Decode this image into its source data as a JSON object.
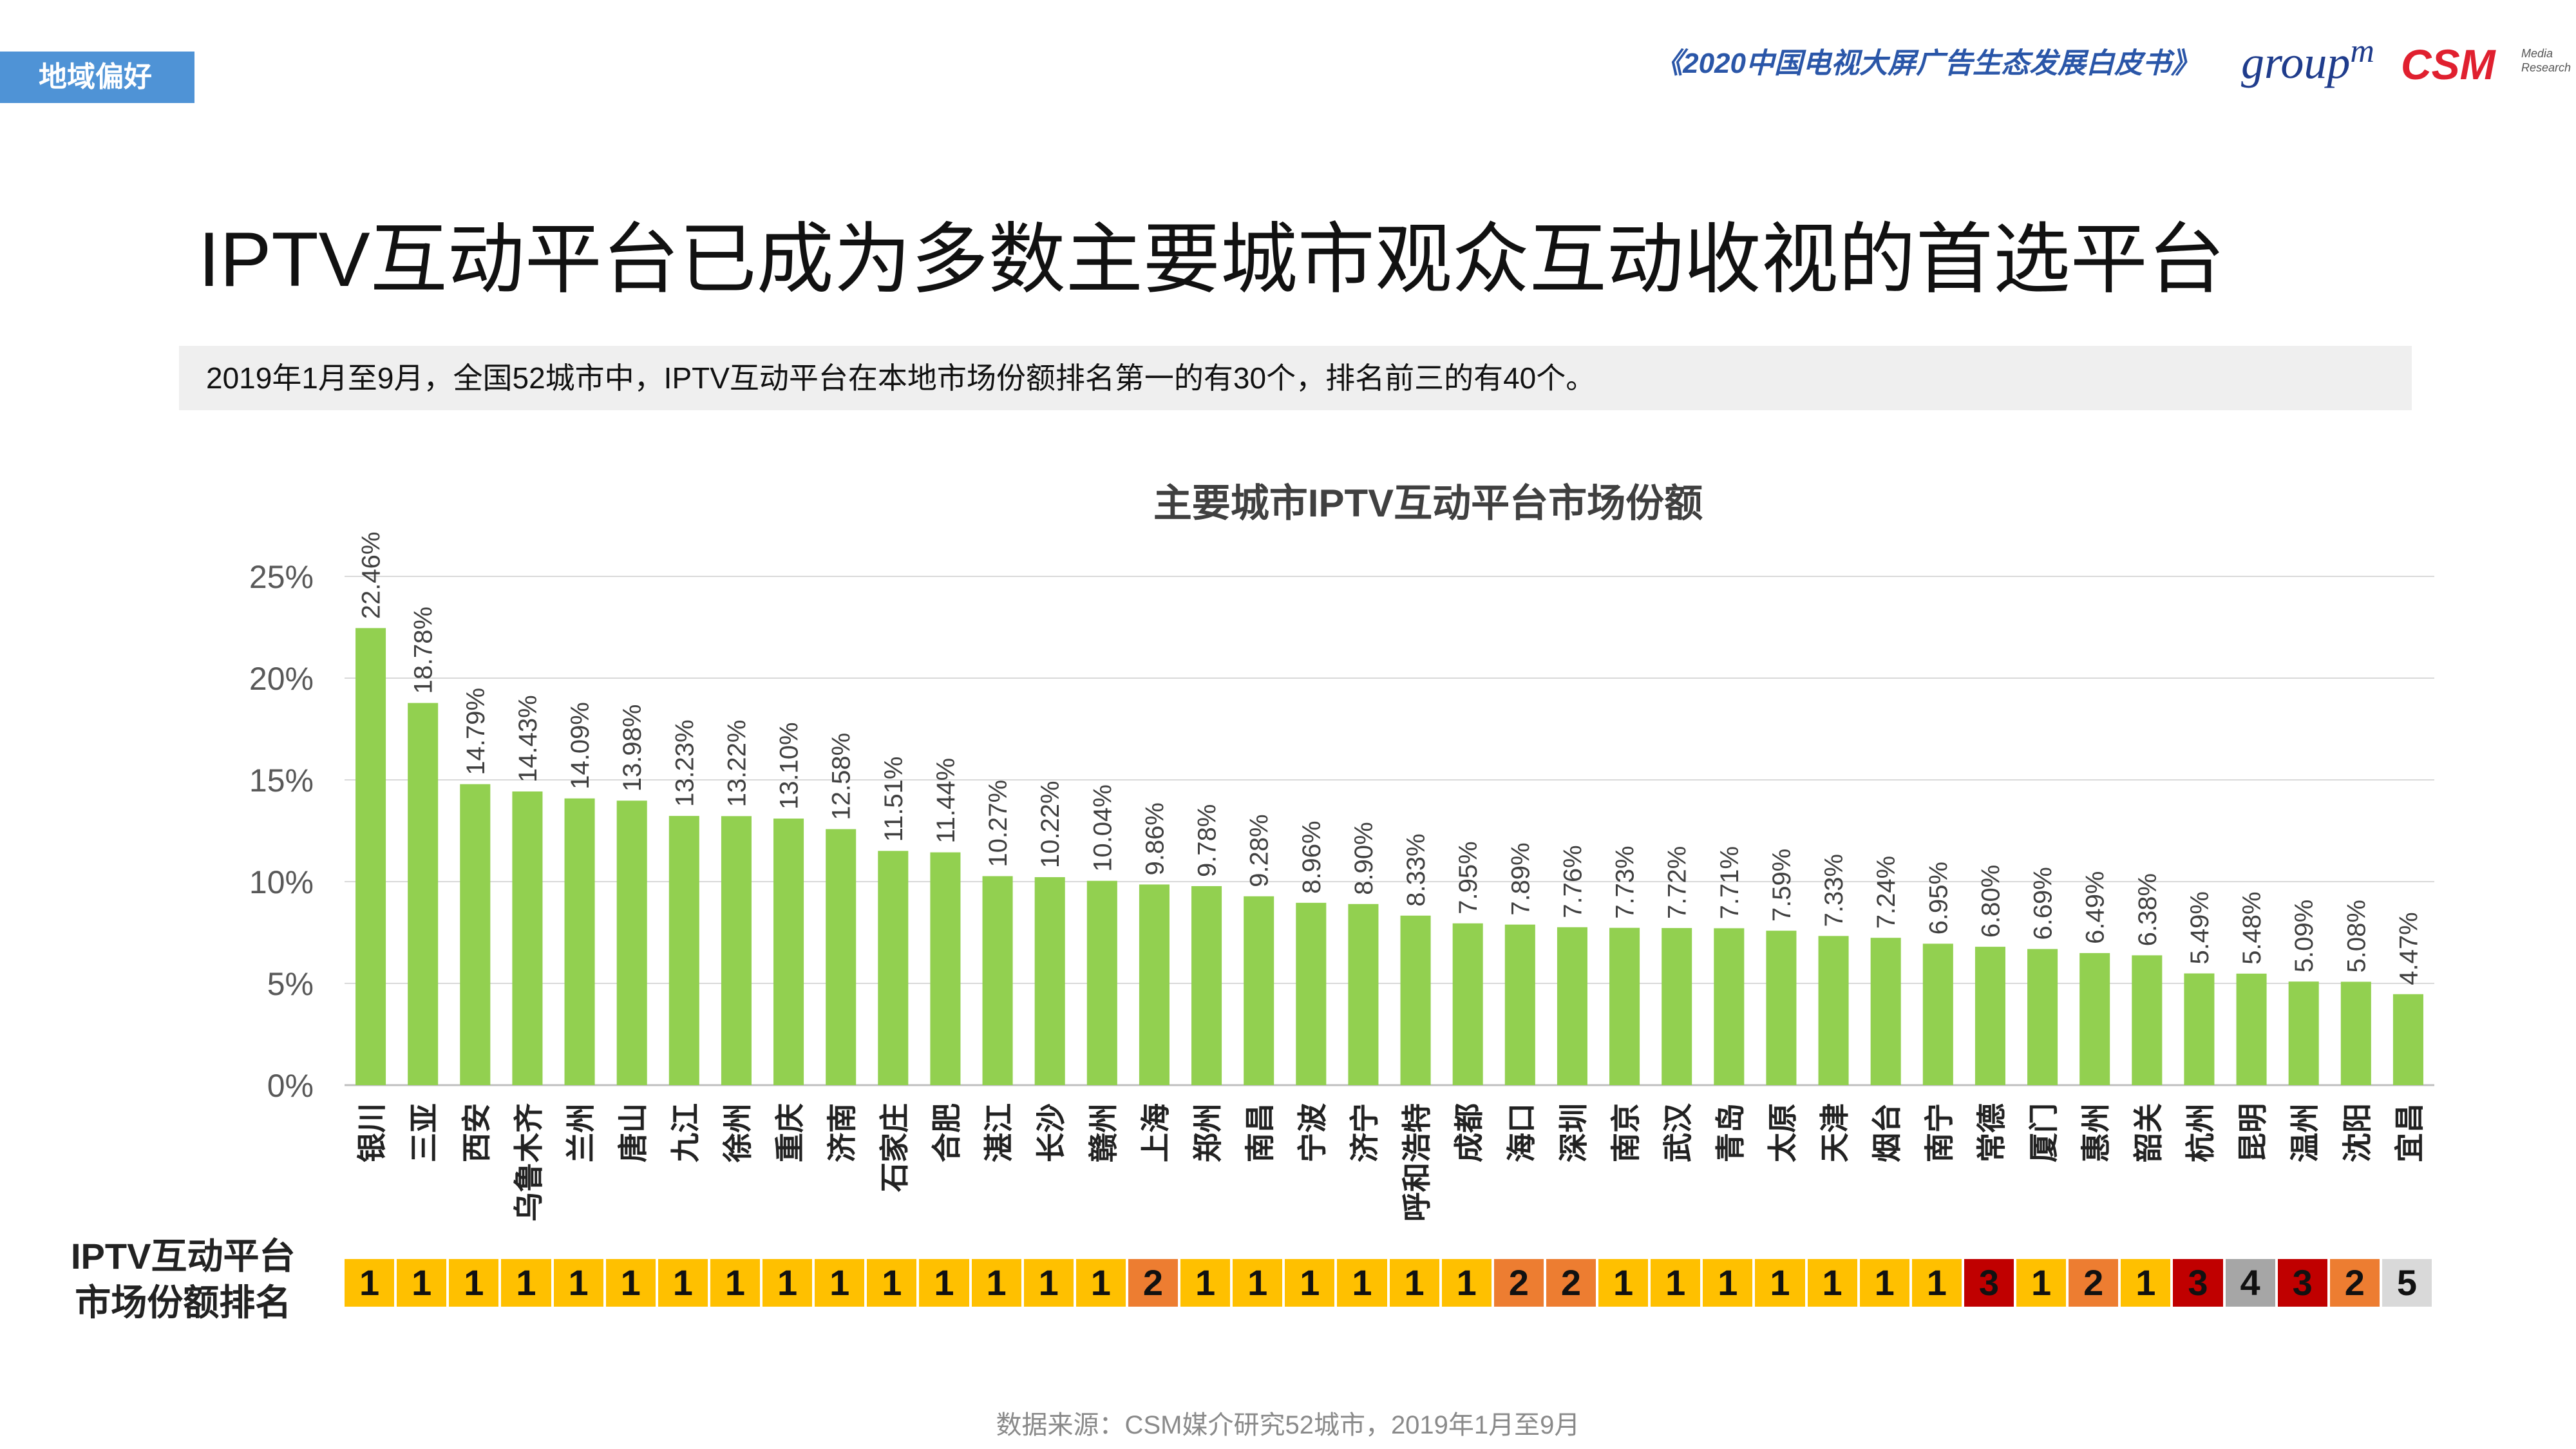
{
  "header": {
    "section_tag": "地域偏好",
    "report_title": "《2020中国电视大屏广告生态发展白皮书》",
    "logo_groupm": "group",
    "logo_groupm_sup": "m",
    "logo_csm": "CSM",
    "logo_csm_sub1": "Media",
    "logo_csm_sub2": "Research"
  },
  "title": "IPTV互动平台已成为多数主要城市观众互动收视的首选平台",
  "subtitle": "2019年1月至9月，全国52城市中，IPTV互动平台在本地市场份额排名第一的有30个，排名前三的有40个。",
  "rank_label_line1": "IPTV互动平台",
  "rank_label_line2": "市场份额排名",
  "source": "数据来源：CSM媒介研究52城市，2019年1月至9月",
  "colors": {
    "bar": "#92D050",
    "rank1": "#FFC000",
    "rank2": "#ED7D31",
    "rank3": "#C00000",
    "rank4": "#A6A6A6",
    "rank5": "#D9D9D9",
    "tag": "#4F93D6"
  },
  "chart_data": {
    "type": "bar",
    "title": "主要城市IPTV互动平台市场份额",
    "categories": [
      "银川",
      "三亚",
      "西安",
      "乌鲁木齐",
      "兰州",
      "唐山",
      "九江",
      "徐州",
      "重庆",
      "济南",
      "石家庄",
      "合肥",
      "湛江",
      "长沙",
      "赣州",
      "上海",
      "郑州",
      "南昌",
      "宁波",
      "济宁",
      "呼和浩特",
      "成都",
      "海口",
      "深圳",
      "南京",
      "武汉",
      "青岛",
      "太原",
      "天津",
      "烟台",
      "南宁",
      "常德",
      "厦门",
      "惠州",
      "韶关",
      "杭州",
      "昆明",
      "温州",
      "沈阳",
      "宜昌"
    ],
    "values": [
      22.46,
      18.78,
      14.79,
      14.43,
      14.09,
      13.98,
      13.23,
      13.22,
      13.1,
      12.58,
      11.51,
      11.44,
      10.27,
      10.22,
      10.04,
      9.86,
      9.78,
      9.28,
      8.96,
      8.9,
      8.33,
      7.95,
      7.89,
      7.76,
      7.73,
      7.72,
      7.71,
      7.59,
      7.33,
      7.24,
      6.95,
      6.8,
      6.69,
      6.49,
      6.38,
      5.49,
      5.48,
      5.09,
      5.08,
      4.47
    ],
    "value_labels": [
      "22.46%",
      "18.78%",
      "14.79%",
      "14.43%",
      "14.09%",
      "13.98%",
      "13.23%",
      "13.22%",
      "13.10%",
      "12.58%",
      "11.51%",
      "11.44%",
      "10.27%",
      "10.22%",
      "10.04%",
      "9.86%",
      "9.78%",
      "9.28%",
      "8.96%",
      "8.90%",
      "8.33%",
      "7.95%",
      "7.89%",
      "7.76%",
      "7.73%",
      "7.72%",
      "7.71%",
      "7.59%",
      "7.33%",
      "7.24%",
      "6.95%",
      "6.80%",
      "6.69%",
      "6.49%",
      "6.38%",
      "5.49%",
      "5.48%",
      "5.09%",
      "5.08%",
      "4.47%"
    ],
    "ylim": [
      0,
      25
    ],
    "yticks": [
      0,
      5,
      10,
      15,
      20,
      25
    ],
    "ytick_labels": [
      "0%",
      "5%",
      "10%",
      "15%",
      "20%",
      "25%"
    ],
    "grid": true,
    "ranks": [
      1,
      1,
      1,
      1,
      1,
      1,
      1,
      1,
      1,
      1,
      1,
      1,
      1,
      1,
      1,
      2,
      1,
      1,
      1,
      1,
      1,
      1,
      2,
      2,
      1,
      1,
      1,
      1,
      1,
      1,
      1,
      3,
      1,
      2,
      1,
      3,
      4,
      3,
      2,
      5
    ]
  }
}
